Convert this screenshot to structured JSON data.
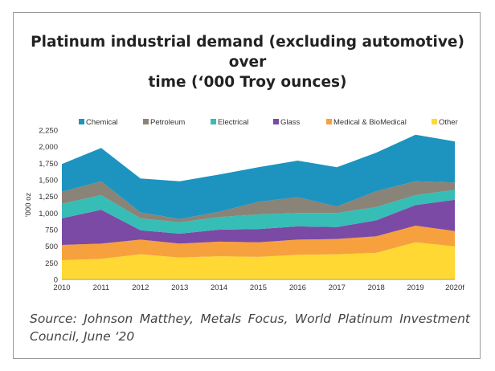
{
  "chart_data": {
    "type": "area",
    "title_lines": [
      "Platinum industrial demand (excluding automotive) over",
      "time (‘000 Troy ounces)"
    ],
    "ylabel": "'000 oz",
    "xlabel": "",
    "categories": [
      "2010",
      "2011",
      "2012",
      "2013",
      "2014",
      "2015",
      "2016",
      "2017",
      "2018",
      "2019",
      "2020f"
    ],
    "ylim": [
      0,
      2250
    ],
    "yticks": [
      "0",
      "250",
      "500",
      "750",
      "1,000",
      "1,250",
      "1,500",
      "1,750",
      "2,000",
      "2,250"
    ],
    "ytick_values": [
      0,
      250,
      500,
      750,
      1000,
      1250,
      1500,
      1750,
      2000,
      2250
    ],
    "stacked": true,
    "legend_position": "top",
    "series": [
      {
        "name": "Other",
        "color": "#ffd833",
        "values": [
          290,
          310,
          380,
          330,
          350,
          340,
          370,
          380,
          400,
          560,
          500
        ]
      },
      {
        "name": "Medical & BioMedical",
        "color": "#f7a13e",
        "values": [
          230,
          230,
          220,
          210,
          220,
          220,
          230,
          230,
          250,
          250,
          230
        ]
      },
      {
        "name": "Glass",
        "color": "#7b4aa4",
        "values": [
          400,
          510,
          140,
          150,
          180,
          200,
          200,
          180,
          240,
          310,
          470
        ]
      },
      {
        "name": "Electrical",
        "color": "#36bdb6",
        "values": [
          220,
          220,
          180,
          170,
          190,
          220,
          200,
          210,
          200,
          150,
          150
        ]
      },
      {
        "name": "Petroleum",
        "color": "#8a8377",
        "values": [
          180,
          210,
          90,
          50,
          80,
          190,
          240,
          100,
          240,
          210,
          110
        ]
      },
      {
        "name": "Chemical",
        "color": "#1c94bf",
        "values": [
          420,
          500,
          510,
          570,
          560,
          520,
          550,
          590,
          580,
          700,
          620
        ]
      }
    ],
    "legend_order": [
      "Chemical",
      "Petroleum",
      "Electrical",
      "Glass",
      "Medical & BioMedical",
      "Other"
    ],
    "grid": false
  },
  "source_text": "Source: Johnson Matthey, Metals Focus, World Platinum Investment Council, June ‘20"
}
